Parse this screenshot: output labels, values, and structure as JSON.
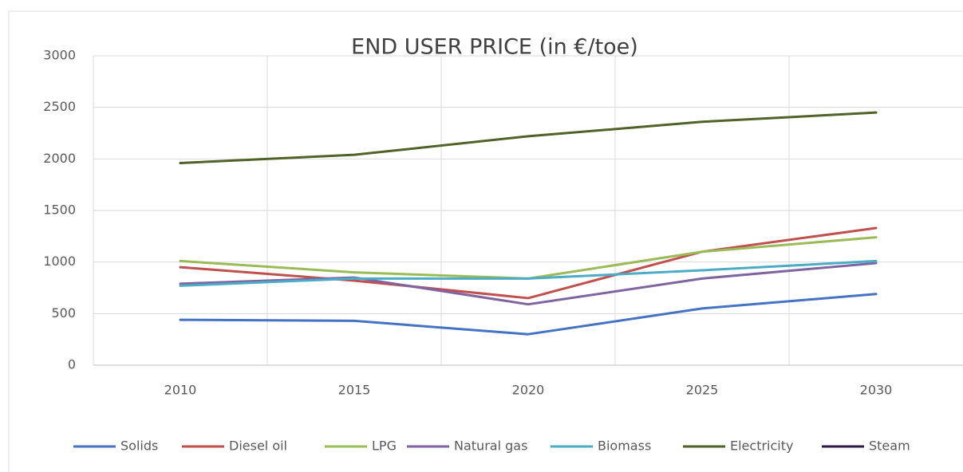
{
  "chart_data": {
    "type": "line",
    "title": "END USER PRICE (in €/toe)",
    "categories": [
      "2010",
      "2015",
      "2020",
      "2025",
      "2030"
    ],
    "series": [
      {
        "name": "Solids",
        "color": "#4472c4",
        "values": [
          440,
          430,
          300,
          550,
          690
        ]
      },
      {
        "name": "Diesel oil",
        "color": "#c0504d",
        "values": [
          950,
          820,
          650,
          1100,
          1330
        ]
      },
      {
        "name": "LPG",
        "color": "#9bbb59",
        "values": [
          1010,
          900,
          840,
          1100,
          1240
        ]
      },
      {
        "name": "Natural gas",
        "color": "#8064a2",
        "values": [
          790,
          850,
          590,
          840,
          990
        ]
      },
      {
        "name": "Biomass",
        "color": "#4bacc6",
        "values": [
          770,
          840,
          840,
          920,
          1010
        ]
      },
      {
        "name": "Electricity",
        "color": "#4f6228",
        "values": [
          1960,
          2040,
          2220,
          2360,
          2450
        ]
      },
      {
        "name": "Steam",
        "color": "#2e1a47",
        "values": [
          null,
          null,
          null,
          null,
          null
        ]
      }
    ],
    "ylim": [
      0,
      3000
    ],
    "yticks": [
      0,
      500,
      1000,
      1500,
      2000,
      2500,
      3000
    ],
    "grid": true,
    "legend": "bottom"
  }
}
